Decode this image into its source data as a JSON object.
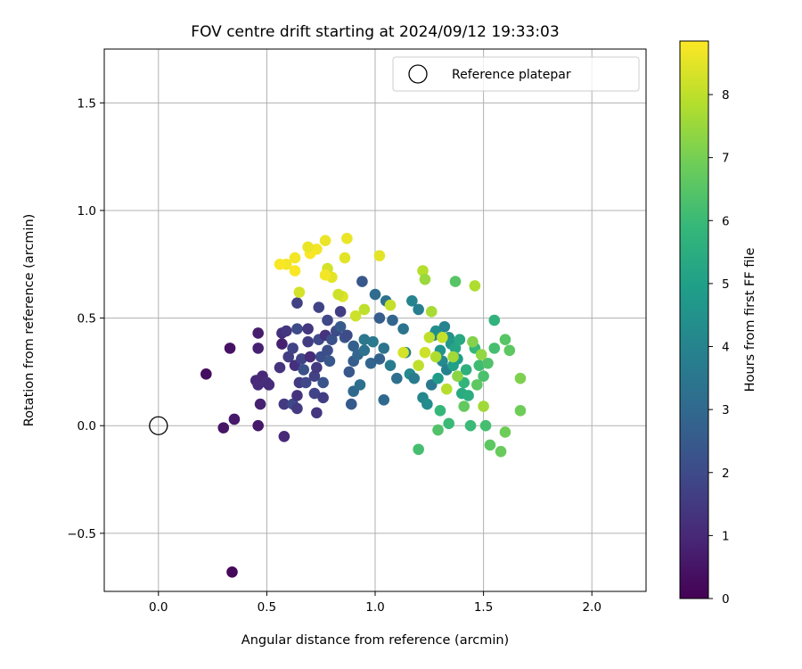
{
  "chart_data": {
    "type": "scatter",
    "title": "FOV centre drift starting at 2024/09/12 19:33:03",
    "xlabel": "Angular distance from reference (arcmin)",
    "ylabel": "Rotation from reference (arcmin)",
    "xlim": [
      -0.25,
      2.25
    ],
    "ylim": [
      -0.77,
      1.75
    ],
    "xticks": [
      0.0,
      0.5,
      1.0,
      1.5,
      2.0
    ],
    "xtick_labels": [
      "0.0",
      "0.5",
      "1.0",
      "1.5",
      "2.0"
    ],
    "yticks": [
      -0.5,
      0.0,
      0.5,
      1.0,
      1.5
    ],
    "ytick_labels": [
      "−0.5",
      "0.0",
      "0.5",
      "1.0",
      "1.5"
    ],
    "grid": true,
    "colormap": "viridis",
    "colorbar": {
      "label": "Hours from first FF file",
      "min": 0,
      "max": 8.85,
      "ticks": [
        0,
        1,
        2,
        3,
        4,
        5,
        6,
        7,
        8
      ],
      "tick_labels": [
        "0",
        "1",
        "2",
        "3",
        "4",
        "5",
        "6",
        "7",
        "8"
      ]
    },
    "legend": {
      "position": "top-right",
      "entries": [
        "Reference platepar"
      ]
    },
    "reference": {
      "x": 0.0,
      "y": 0.0
    },
    "series": [
      {
        "points": [
          {
            "x": 0.34,
            "y": -0.68,
            "t": 0.2
          },
          {
            "x": 0.22,
            "y": 0.24,
            "t": 0.3
          },
          {
            "x": 0.33,
            "y": 0.36,
            "t": 0.4
          },
          {
            "x": 0.3,
            "y": -0.01,
            "t": 0.5
          },
          {
            "x": 0.35,
            "y": 0.03,
            "t": 0.6
          },
          {
            "x": 0.46,
            "y": 0.43,
            "t": 0.7
          },
          {
            "x": 0.46,
            "y": 0.36,
            "t": 0.8
          },
          {
            "x": 0.46,
            "y": 0.0,
            "t": 0.6
          },
          {
            "x": 0.47,
            "y": 0.1,
            "t": 0.8
          },
          {
            "x": 0.45,
            "y": 0.21,
            "t": 1.0
          },
          {
            "x": 0.46,
            "y": 0.19,
            "t": 1.1
          },
          {
            "x": 0.48,
            "y": 0.23,
            "t": 1.0
          },
          {
            "x": 0.5,
            "y": 0.2,
            "t": 1.2
          },
          {
            "x": 0.51,
            "y": 0.19,
            "t": 1.1
          },
          {
            "x": 0.58,
            "y": -0.05,
            "t": 1.0
          },
          {
            "x": 0.57,
            "y": 0.38,
            "t": 0.8
          },
          {
            "x": 0.57,
            "y": 0.43,
            "t": 1.2
          },
          {
            "x": 0.56,
            "y": 0.27,
            "t": 1.3
          },
          {
            "x": 0.58,
            "y": 0.1,
            "t": 1.5
          },
          {
            "x": 0.59,
            "y": 0.44,
            "t": 1.4
          },
          {
            "x": 0.6,
            "y": 0.32,
            "t": 1.6
          },
          {
            "x": 0.62,
            "y": 0.36,
            "t": 1.8
          },
          {
            "x": 0.63,
            "y": 0.28,
            "t": 1.2
          },
          {
            "x": 0.62,
            "y": 0.1,
            "t": 1.9
          },
          {
            "x": 0.64,
            "y": 0.08,
            "t": 1.5
          },
          {
            "x": 0.64,
            "y": 0.14,
            "t": 1.3
          },
          {
            "x": 0.65,
            "y": 0.2,
            "t": 1.5
          },
          {
            "x": 0.64,
            "y": 0.57,
            "t": 1.7
          },
          {
            "x": 0.64,
            "y": 0.45,
            "t": 2.0
          },
          {
            "x": 0.66,
            "y": 0.31,
            "t": 1.8
          },
          {
            "x": 0.67,
            "y": 0.26,
            "t": 2.2
          },
          {
            "x": 0.68,
            "y": 0.2,
            "t": 1.9
          },
          {
            "x": 0.69,
            "y": 0.45,
            "t": 1.4
          },
          {
            "x": 0.69,
            "y": 0.39,
            "t": 1.6
          },
          {
            "x": 0.7,
            "y": 0.32,
            "t": 1.1
          },
          {
            "x": 0.72,
            "y": 0.23,
            "t": 1.7
          },
          {
            "x": 0.72,
            "y": 0.15,
            "t": 1.8
          },
          {
            "x": 0.73,
            "y": 0.06,
            "t": 1.4
          },
          {
            "x": 0.73,
            "y": 0.27,
            "t": 1.5
          },
          {
            "x": 0.74,
            "y": 0.4,
            "t": 1.9
          },
          {
            "x": 0.74,
            "y": 0.55,
            "t": 1.8
          },
          {
            "x": 0.75,
            "y": 0.32,
            "t": 2.1
          },
          {
            "x": 0.76,
            "y": 0.2,
            "t": 2.3
          },
          {
            "x": 0.76,
            "y": 0.13,
            "t": 1.6
          },
          {
            "x": 0.77,
            "y": 0.42,
            "t": 1.3
          },
          {
            "x": 0.78,
            "y": 0.49,
            "t": 1.9
          },
          {
            "x": 0.78,
            "y": 0.35,
            "t": 2.1
          },
          {
            "x": 0.79,
            "y": 0.3,
            "t": 2.4
          },
          {
            "x": 0.8,
            "y": 0.4,
            "t": 2.2
          },
          {
            "x": 0.82,
            "y": 0.44,
            "t": 2.0
          },
          {
            "x": 0.84,
            "y": 0.53,
            "t": 1.6
          },
          {
            "x": 0.84,
            "y": 0.46,
            "t": 2.5
          },
          {
            "x": 0.86,
            "y": 0.41,
            "t": 2.3
          },
          {
            "x": 0.87,
            "y": 0.42,
            "t": 2.0
          },
          {
            "x": 0.88,
            "y": 0.25,
            "t": 2.4
          },
          {
            "x": 0.9,
            "y": 0.3,
            "t": 2.6
          },
          {
            "x": 0.89,
            "y": 0.1,
            "t": 2.5
          },
          {
            "x": 0.9,
            "y": 0.16,
            "t": 3.0
          },
          {
            "x": 0.9,
            "y": 0.37,
            "t": 2.7
          },
          {
            "x": 0.92,
            "y": 0.33,
            "t": 2.9
          },
          {
            "x": 0.94,
            "y": 0.67,
            "t": 2.4
          },
          {
            "x": 0.93,
            "y": 0.19,
            "t": 3.2
          },
          {
            "x": 0.95,
            "y": 0.4,
            "t": 3.5
          },
          {
            "x": 0.95,
            "y": 0.35,
            "t": 3.3
          },
          {
            "x": 0.98,
            "y": 0.29,
            "t": 2.9
          },
          {
            "x": 0.99,
            "y": 0.39,
            "t": 3.6
          },
          {
            "x": 1.0,
            "y": 0.61,
            "t": 3.1
          },
          {
            "x": 1.02,
            "y": 0.5,
            "t": 2.6
          },
          {
            "x": 1.02,
            "y": 0.31,
            "t": 2.8
          },
          {
            "x": 1.04,
            "y": 0.12,
            "t": 3.0
          },
          {
            "x": 1.04,
            "y": 0.36,
            "t": 3.4
          },
          {
            "x": 1.05,
            "y": 0.58,
            "t": 3.3
          },
          {
            "x": 1.07,
            "y": 0.28,
            "t": 3.7
          },
          {
            "x": 1.08,
            "y": 0.49,
            "t": 2.9
          },
          {
            "x": 1.1,
            "y": 0.22,
            "t": 3.2
          },
          {
            "x": 1.13,
            "y": 0.45,
            "t": 3.4
          },
          {
            "x": 1.14,
            "y": 0.34,
            "t": 3.9
          },
          {
            "x": 1.16,
            "y": 0.24,
            "t": 4.2
          },
          {
            "x": 1.17,
            "y": 0.58,
            "t": 4.0
          },
          {
            "x": 1.18,
            "y": 0.22,
            "t": 3.7
          },
          {
            "x": 1.2,
            "y": 0.54,
            "t": 3.8
          },
          {
            "x": 1.22,
            "y": 0.13,
            "t": 4.1
          },
          {
            "x": 1.24,
            "y": 0.1,
            "t": 4.3
          },
          {
            "x": 1.26,
            "y": 0.19,
            "t": 3.6
          },
          {
            "x": 1.27,
            "y": 0.42,
            "t": 4.0
          },
          {
            "x": 1.28,
            "y": 0.44,
            "t": 4.4
          },
          {
            "x": 1.29,
            "y": 0.22,
            "t": 4.8
          },
          {
            "x": 1.3,
            "y": 0.35,
            "t": 4.6
          },
          {
            "x": 1.31,
            "y": 0.3,
            "t": 4.2
          },
          {
            "x": 1.32,
            "y": 0.46,
            "t": 4.0
          },
          {
            "x": 1.33,
            "y": 0.26,
            "t": 3.9
          },
          {
            "x": 1.34,
            "y": 0.41,
            "t": 4.5
          },
          {
            "x": 1.35,
            "y": 0.38,
            "t": 4.7
          },
          {
            "x": 1.36,
            "y": 0.28,
            "t": 5.0
          },
          {
            "x": 1.37,
            "y": 0.36,
            "t": 5.2
          },
          {
            "x": 1.38,
            "y": 0.31,
            "t": 4.9
          },
          {
            "x": 1.39,
            "y": 0.4,
            "t": 5.3
          },
          {
            "x": 1.4,
            "y": 0.15,
            "t": 5.4
          },
          {
            "x": 1.41,
            "y": 0.2,
            "t": 5.8
          },
          {
            "x": 1.42,
            "y": 0.26,
            "t": 5.6
          },
          {
            "x": 1.43,
            "y": 0.14,
            "t": 5.5
          },
          {
            "x": 1.44,
            "y": 0.0,
            "t": 6.0
          },
          {
            "x": 1.46,
            "y": 0.36,
            "t": 5.9
          },
          {
            "x": 1.48,
            "y": 0.28,
            "t": 6.1
          },
          {
            "x": 1.5,
            "y": 0.23,
            "t": 6.3
          },
          {
            "x": 1.51,
            "y": 0.0,
            "t": 6.2
          },
          {
            "x": 1.52,
            "y": 0.29,
            "t": 6.4
          },
          {
            "x": 1.53,
            "y": -0.09,
            "t": 6.6
          },
          {
            "x": 1.55,
            "y": 0.49,
            "t": 5.7
          },
          {
            "x": 1.55,
            "y": 0.36,
            "t": 6.2
          },
          {
            "x": 1.58,
            "y": -0.12,
            "t": 6.8
          },
          {
            "x": 1.6,
            "y": 0.4,
            "t": 6.5
          },
          {
            "x": 1.6,
            "y": -0.03,
            "t": 6.9
          },
          {
            "x": 1.62,
            "y": 0.35,
            "t": 6.6
          },
          {
            "x": 1.67,
            "y": 0.22,
            "t": 7.1
          },
          {
            "x": 1.67,
            "y": 0.07,
            "t": 6.9
          },
          {
            "x": 1.2,
            "y": -0.11,
            "t": 6.2
          },
          {
            "x": 1.29,
            "y": -0.02,
            "t": 6.4
          },
          {
            "x": 1.34,
            "y": 0.01,
            "t": 6.0
          },
          {
            "x": 1.3,
            "y": 0.07,
            "t": 5.9
          },
          {
            "x": 1.37,
            "y": 0.67,
            "t": 6.5
          },
          {
            "x": 1.41,
            "y": 0.09,
            "t": 6.7
          },
          {
            "x": 1.45,
            "y": 0.39,
            "t": 7.2
          },
          {
            "x": 1.47,
            "y": 0.19,
            "t": 6.6
          },
          {
            "x": 1.49,
            "y": 0.33,
            "t": 7.4
          },
          {
            "x": 1.5,
            "y": 0.09,
            "t": 7.6
          },
          {
            "x": 1.46,
            "y": 0.65,
            "t": 7.8
          },
          {
            "x": 1.38,
            "y": 0.23,
            "t": 7.3
          },
          {
            "x": 1.36,
            "y": 0.32,
            "t": 7.6
          },
          {
            "x": 1.33,
            "y": 0.17,
            "t": 7.9
          },
          {
            "x": 1.31,
            "y": 0.41,
            "t": 8.1
          },
          {
            "x": 1.28,
            "y": 0.32,
            "t": 7.8
          },
          {
            "x": 1.26,
            "y": 0.53,
            "t": 7.7
          },
          {
            "x": 1.25,
            "y": 0.41,
            "t": 8.0
          },
          {
            "x": 1.23,
            "y": 0.34,
            "t": 8.2
          },
          {
            "x": 1.22,
            "y": 0.72,
            "t": 7.9
          },
          {
            "x": 1.23,
            "y": 0.68,
            "t": 7.5
          },
          {
            "x": 1.2,
            "y": 0.28,
            "t": 8.0
          },
          {
            "x": 1.13,
            "y": 0.34,
            "t": 8.3
          },
          {
            "x": 1.07,
            "y": 0.56,
            "t": 8.1
          },
          {
            "x": 1.02,
            "y": 0.79,
            "t": 8.5
          },
          {
            "x": 0.95,
            "y": 0.54,
            "t": 8.0
          },
          {
            "x": 0.91,
            "y": 0.51,
            "t": 8.2
          },
          {
            "x": 0.87,
            "y": 0.87,
            "t": 8.6
          },
          {
            "x": 0.86,
            "y": 0.78,
            "t": 8.5
          },
          {
            "x": 0.85,
            "y": 0.6,
            "t": 8.4
          },
          {
            "x": 0.83,
            "y": 0.61,
            "t": 8.2
          },
          {
            "x": 0.8,
            "y": 0.69,
            "t": 8.5
          },
          {
            "x": 0.78,
            "y": 0.73,
            "t": 8.3
          },
          {
            "x": 0.77,
            "y": 0.7,
            "t": 8.7
          },
          {
            "x": 0.77,
            "y": 0.86,
            "t": 8.6
          },
          {
            "x": 0.73,
            "y": 0.82,
            "t": 8.7
          },
          {
            "x": 0.7,
            "y": 0.8,
            "t": 8.8
          },
          {
            "x": 0.69,
            "y": 0.83,
            "t": 8.6
          },
          {
            "x": 0.65,
            "y": 0.62,
            "t": 8.3
          },
          {
            "x": 0.63,
            "y": 0.78,
            "t": 8.7
          },
          {
            "x": 0.63,
            "y": 0.72,
            "t": 8.8
          },
          {
            "x": 0.59,
            "y": 0.75,
            "t": 8.7
          },
          {
            "x": 0.56,
            "y": 0.75,
            "t": 8.8
          }
        ]
      }
    ]
  }
}
